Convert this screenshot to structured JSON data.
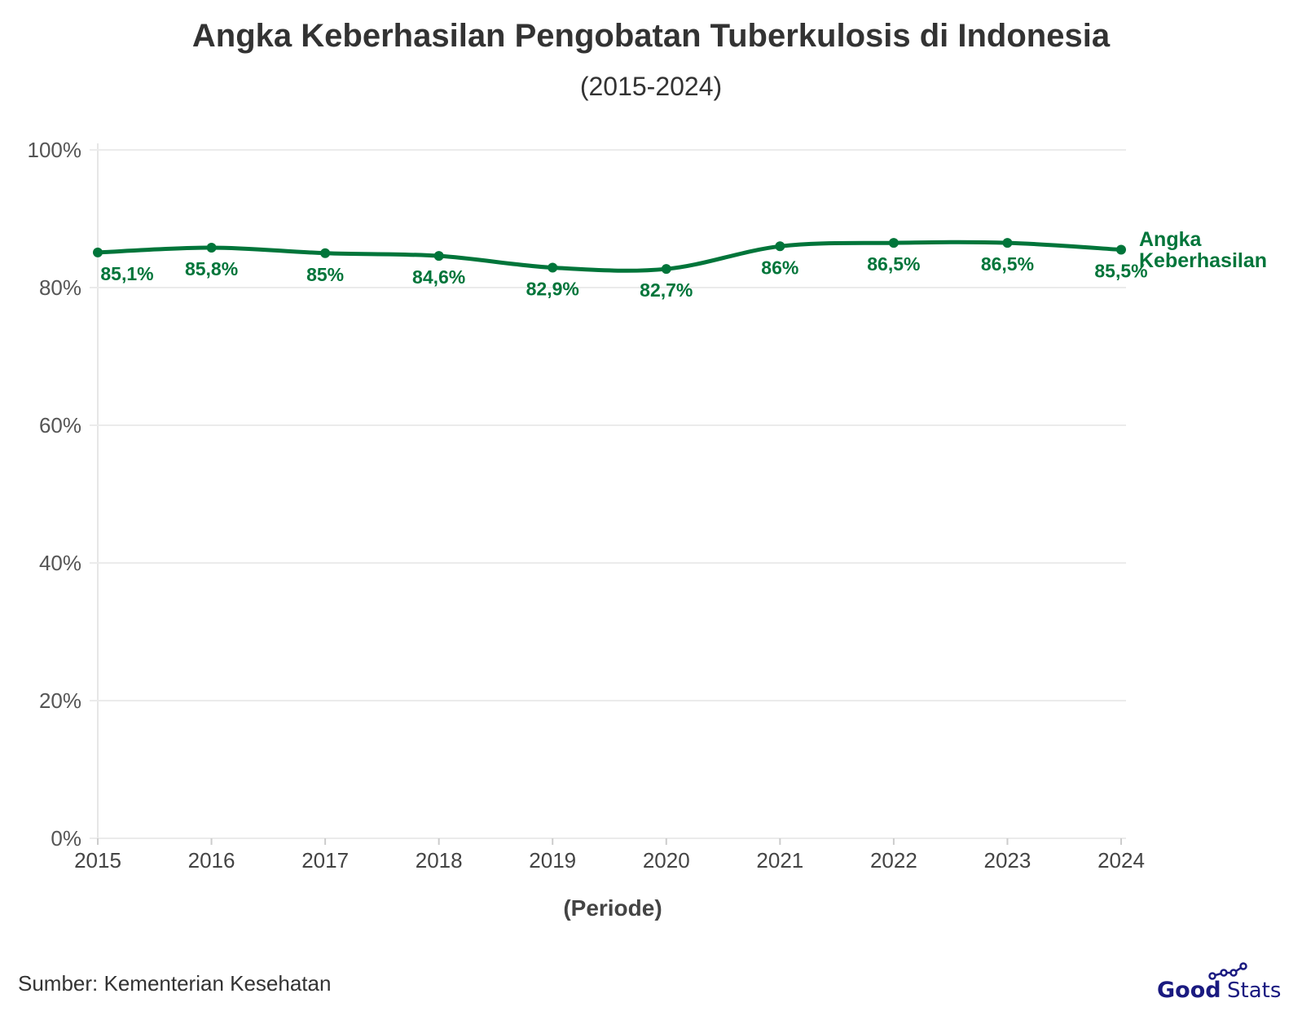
{
  "title": "Angka Keberhasilan Pengobatan Tuberkulosis di Indonesia",
  "subtitle": "(2015-2024)",
  "source": "Sumber: Kementerian Kesehatan",
  "logo": {
    "text_bold": "Good",
    "text_light": "Stats",
    "color": "#1a1a80"
  },
  "chart_data": {
    "type": "line",
    "title": "Angka Keberhasilan Pengobatan Tuberkulosis di Indonesia",
    "subtitle": "(2015-2024)",
    "xlabel": "(Periode)",
    "ylabel": "",
    "x": [
      "2015",
      "2016",
      "2017",
      "2018",
      "2019",
      "2020",
      "2021",
      "2022",
      "2023",
      "2024"
    ],
    "ylim": [
      0,
      100
    ],
    "yticks": [
      0,
      20,
      40,
      60,
      80,
      100
    ],
    "ytick_labels": [
      "0%",
      "20%",
      "40%",
      "60%",
      "80%",
      "100%"
    ],
    "grid": true,
    "series": [
      {
        "name": "Angka Keberhasilan",
        "name_lines": [
          "Angka",
          "Keberhasilan"
        ],
        "color": "#00753a",
        "values": [
          85.1,
          85.8,
          85.0,
          84.6,
          82.9,
          82.7,
          86.0,
          86.5,
          86.5,
          85.5
        ],
        "labels": [
          "85,1%",
          "85,8%",
          "85%",
          "84,6%",
          "82,9%",
          "82,7%",
          "86%",
          "86,5%",
          "86,5%",
          "85,5%"
        ]
      }
    ],
    "legend": "right-end-label"
  }
}
